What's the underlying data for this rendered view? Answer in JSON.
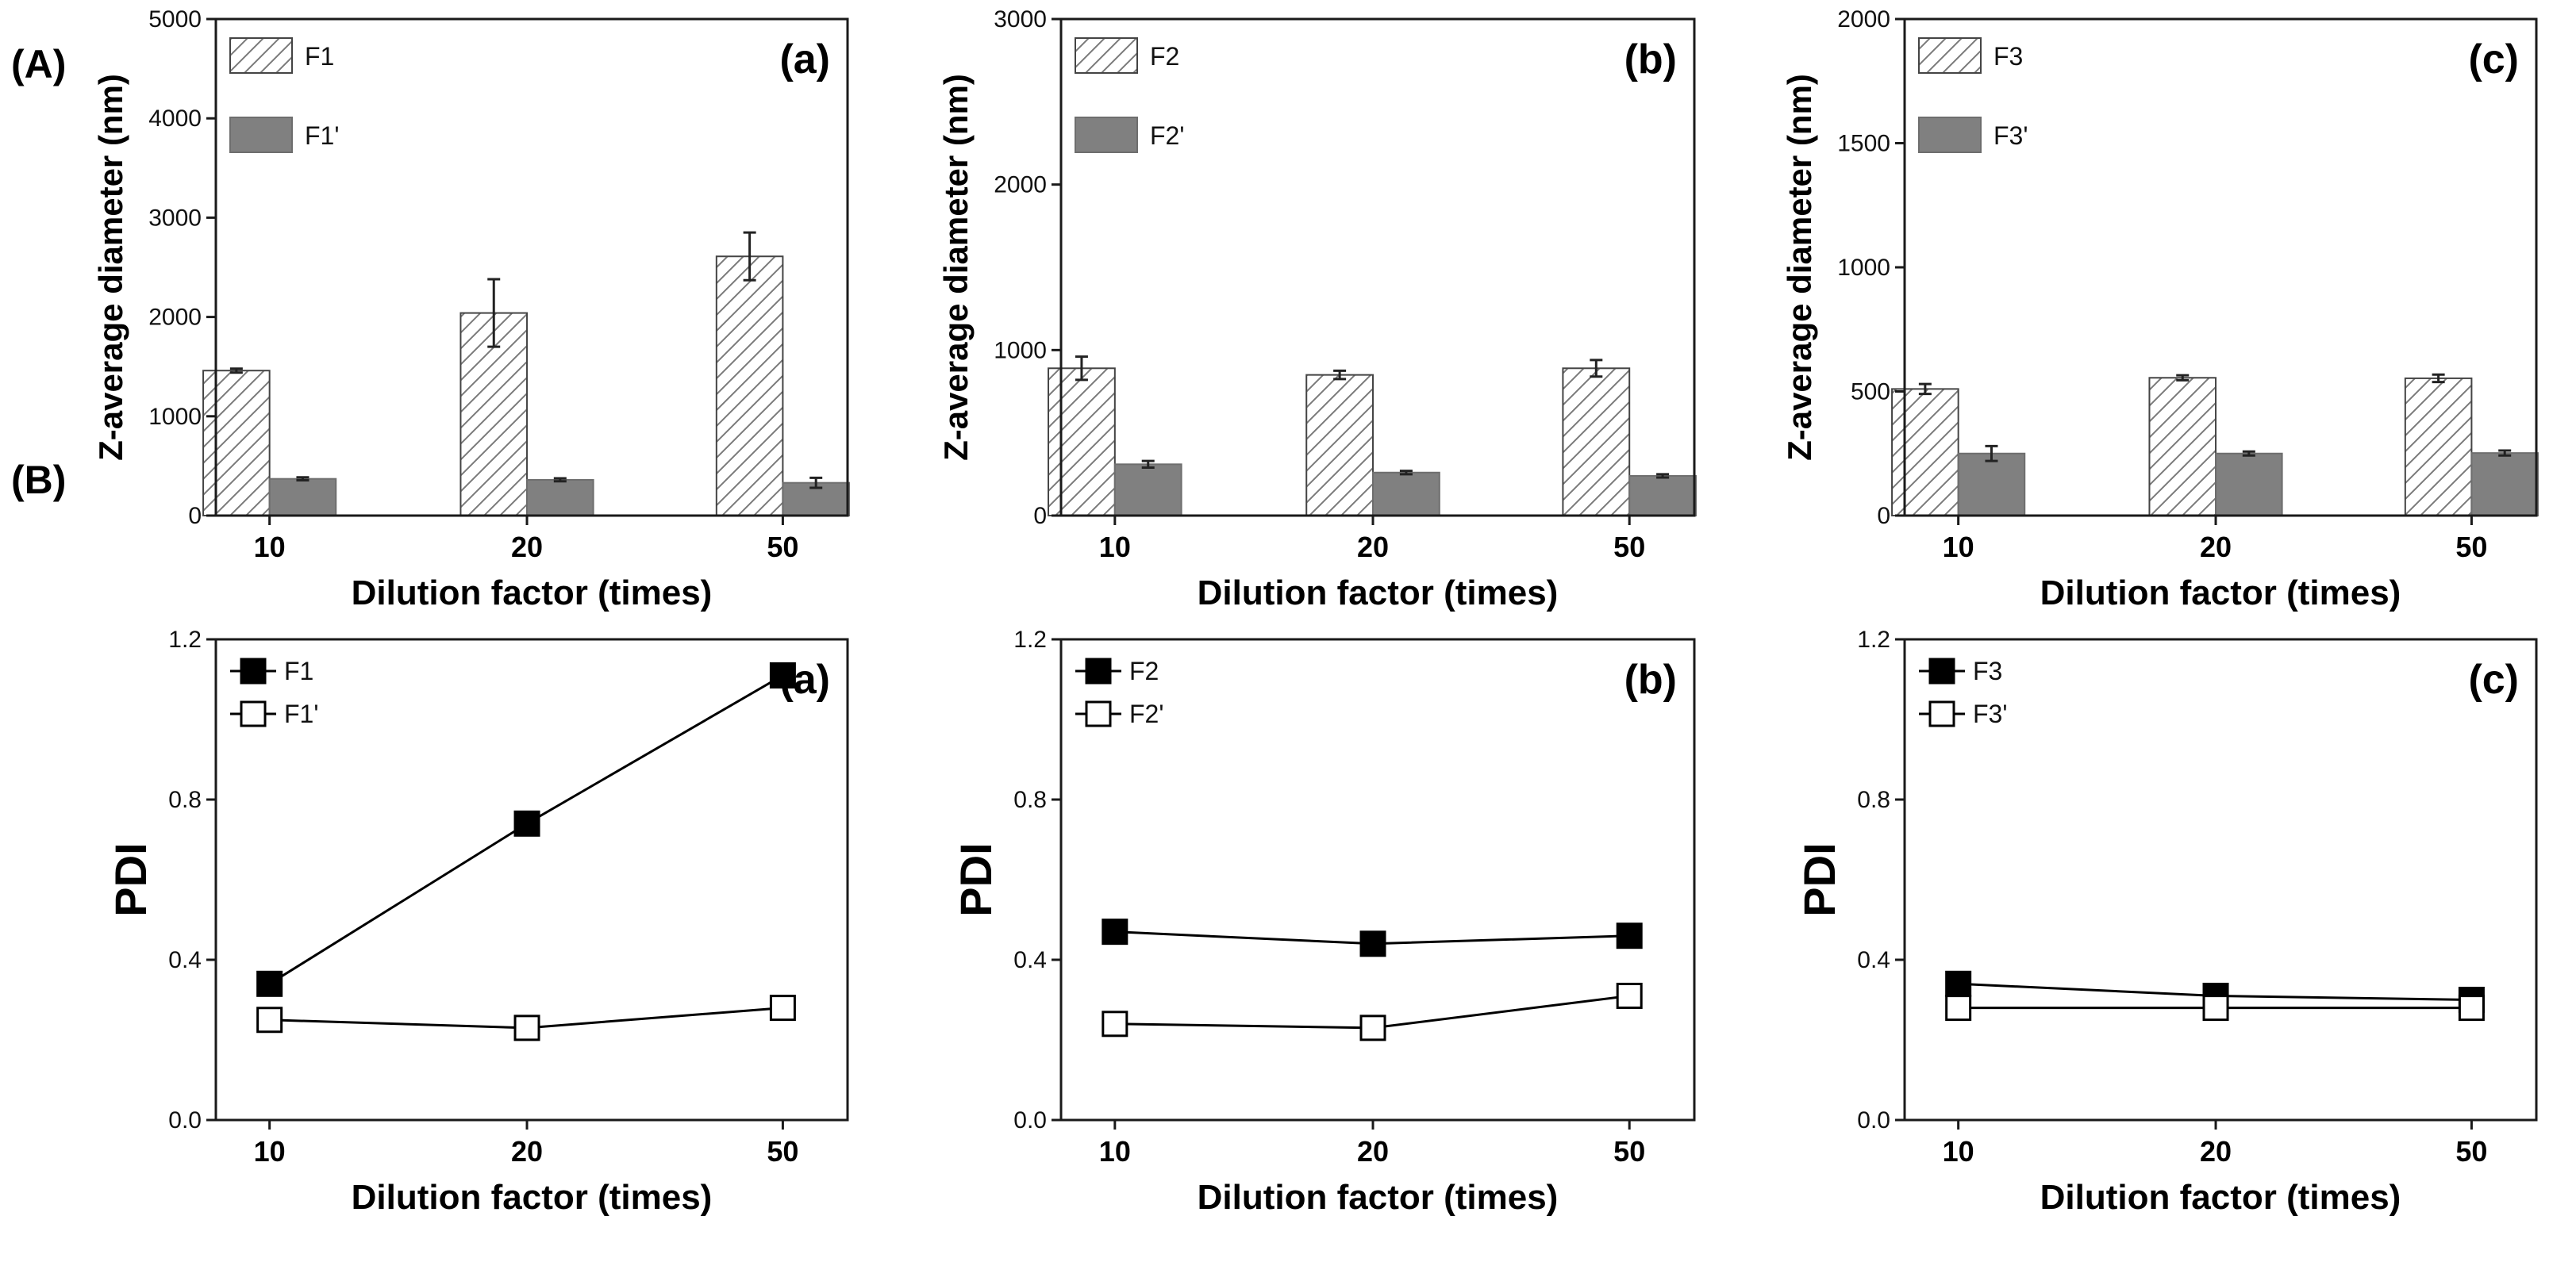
{
  "figure": {
    "row_labels": [
      "(A)",
      "(B)"
    ]
  },
  "colors": {
    "axis": "#1a1a1a",
    "bar_solid": "#808080",
    "hatch": "#7a7a7a",
    "marker_filled": "#000000",
    "marker_open": "#ffffff"
  },
  "chart_data": [
    {
      "id": "A-a",
      "type": "bar",
      "panel_label": "(a)",
      "xlabel": "Dilution factor (times)",
      "ylabel": "Z-average diameter (nm)",
      "categories": [
        "10",
        "20",
        "50"
      ],
      "ylim": [
        0,
        5000
      ],
      "yticks": [
        "0",
        "1000",
        "2000",
        "3000",
        "4000",
        "5000"
      ],
      "legend_position": "top-left",
      "series": [
        {
          "name": "F1",
          "style": "hatched",
          "values": [
            1460,
            2040,
            2610
          ],
          "errors": [
            20,
            340,
            240
          ]
        },
        {
          "name": "F1'",
          "style": "solid",
          "values": [
            370,
            360,
            330
          ],
          "errors": [
            15,
            15,
            50
          ]
        }
      ]
    },
    {
      "id": "A-b",
      "type": "bar",
      "panel_label": "(b)",
      "xlabel": "Dilution factor (times)",
      "ylabel": "Z-average diameter (nm)",
      "categories": [
        "10",
        "20",
        "50"
      ],
      "ylim": [
        0,
        3000
      ],
      "yticks": [
        "0",
        "1000",
        "2000",
        "3000"
      ],
      "legend_position": "top-left",
      "series": [
        {
          "name": "F2",
          "style": "hatched",
          "values": [
            890,
            850,
            890
          ],
          "errors": [
            70,
            25,
            50
          ]
        },
        {
          "name": "F2'",
          "style": "solid",
          "values": [
            310,
            260,
            240
          ],
          "errors": [
            20,
            10,
            10
          ]
        }
      ]
    },
    {
      "id": "A-c",
      "type": "bar",
      "panel_label": "(c)",
      "xlabel": "Dilution factor (times)",
      "ylabel": "Z-average diameter (nm)",
      "categories": [
        "10",
        "20",
        "50"
      ],
      "ylim": [
        0,
        2000
      ],
      "yticks": [
        "0",
        "500",
        "1000",
        "1500",
        "2000"
      ],
      "legend_position": "top-left",
      "series": [
        {
          "name": "F3",
          "style": "hatched",
          "values": [
            510,
            555,
            553
          ],
          "errors": [
            20,
            10,
            15
          ]
        },
        {
          "name": "F3'",
          "style": "solid",
          "values": [
            250,
            250,
            252
          ],
          "errors": [
            30,
            8,
            10
          ]
        }
      ]
    },
    {
      "id": "B-a",
      "type": "line",
      "panel_label": "(a)",
      "xlabel": "Dilution factor (times)",
      "ylabel": "PDI",
      "categories": [
        "10",
        "20",
        "50"
      ],
      "ylim": [
        0,
        1.2
      ],
      "yticks": [
        "0.0",
        "0.4",
        "0.8",
        "1.2"
      ],
      "legend_position": "top-left",
      "series": [
        {
          "name": "F1",
          "marker": "filled-square",
          "values": [
            0.34,
            0.74,
            1.11
          ]
        },
        {
          "name": "F1'",
          "marker": "open-square",
          "values": [
            0.25,
            0.23,
            0.28
          ]
        }
      ]
    },
    {
      "id": "B-b",
      "type": "line",
      "panel_label": "(b)",
      "xlabel": "Dilution factor (times)",
      "ylabel": "PDI",
      "categories": [
        "10",
        "20",
        "50"
      ],
      "ylim": [
        0,
        1.2
      ],
      "yticks": [
        "0.0",
        "0.4",
        "0.8",
        "1.2"
      ],
      "legend_position": "top-left",
      "series": [
        {
          "name": "F2",
          "marker": "filled-square",
          "values": [
            0.47,
            0.44,
            0.46
          ]
        },
        {
          "name": "F2'",
          "marker": "open-square",
          "values": [
            0.24,
            0.23,
            0.31
          ]
        }
      ]
    },
    {
      "id": "B-c",
      "type": "line",
      "panel_label": "(c)",
      "xlabel": "Dilution factor (times)",
      "ylabel": "PDI",
      "categories": [
        "10",
        "20",
        "50"
      ],
      "ylim": [
        0,
        1.2
      ],
      "yticks": [
        "0.0",
        "0.4",
        "0.8",
        "1.2"
      ],
      "legend_position": "top-left",
      "series": [
        {
          "name": "F3",
          "marker": "filled-square",
          "values": [
            0.34,
            0.31,
            0.3
          ]
        },
        {
          "name": "F3'",
          "marker": "open-square",
          "values": [
            0.28,
            0.28,
            0.28
          ]
        }
      ]
    }
  ]
}
